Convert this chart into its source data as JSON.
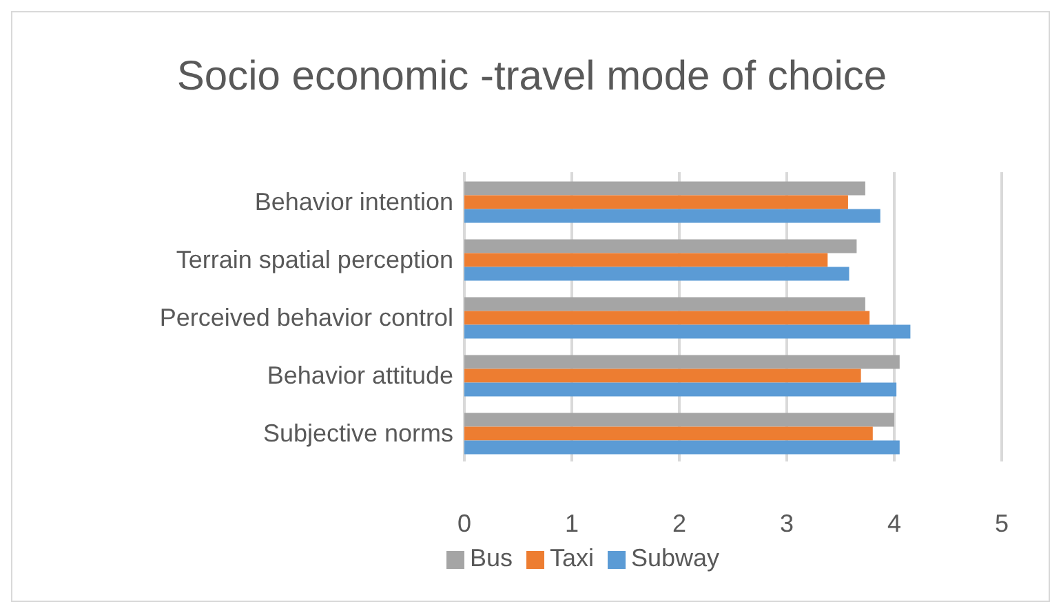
{
  "chart_data": {
    "type": "bar",
    "orientation": "horizontal",
    "title": "Socio economic -travel mode of choice",
    "categories": [
      "Behavior intention",
      "Terrain spatial perception",
      "Perceived behavior control",
      "Behavior attitude",
      "Subjective norms"
    ],
    "series": [
      {
        "name": "Bus",
        "color": "#a5a5a5",
        "values": [
          3.73,
          3.65,
          3.73,
          4.05,
          4.0
        ]
      },
      {
        "name": "Taxi",
        "color": "#ed7d31",
        "values": [
          3.57,
          3.38,
          3.77,
          3.69,
          3.8
        ]
      },
      {
        "name": "Subway",
        "color": "#5b9bd5",
        "values": [
          3.87,
          3.58,
          4.15,
          4.02,
          4.05
        ]
      }
    ],
    "xlim": [
      0,
      5
    ],
    "xticks": [
      0,
      1,
      2,
      3,
      4,
      5
    ],
    "grid": "x",
    "legend": "bottom"
  }
}
